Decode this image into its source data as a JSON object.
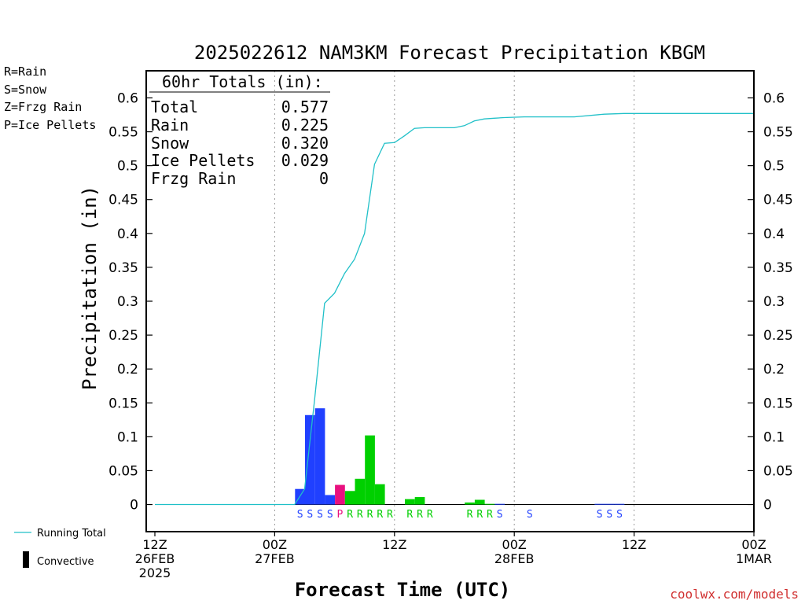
{
  "title": "2025022612 NAM3KM Forecast Precipitation KBGM",
  "legend_types": [
    {
      "text": "R=Rain",
      "color": "#00d000"
    },
    {
      "text": "S=Snow",
      "color": "#3050ff"
    },
    {
      "text": "Z=Frzg Rain",
      "color": "#ff8c40"
    },
    {
      "text": "P=Ice Pellets",
      "color": "#ff1f9f"
    }
  ],
  "totals_box": {
    "heading": "60hr Totals (in):",
    "rows": [
      {
        "label": "Total",
        "value": "0.577"
      },
      {
        "label": "Rain",
        "value": "0.225"
      },
      {
        "label": "Snow",
        "value": "0.320"
      },
      {
        "label": "Ice Pellets",
        "value": "0.029"
      },
      {
        "label": "Frzg Rain",
        "value": "0"
      }
    ]
  },
  "bottom_legend": {
    "running_total": "Running Total",
    "convective": "Convective"
  },
  "credit": "coolwx.com/models",
  "colors": {
    "rain": "#00d000",
    "snow": "#2040ff",
    "ice_pellets": "#e8107f",
    "running_total": "#20c0c8",
    "credit": "#d03030"
  },
  "chart_data": {
    "type": "bar",
    "ylabel": "Precipitation (in)",
    "xlabel": "Forecast Time (UTC)",
    "xlim": [
      0,
      60
    ],
    "ylim": [
      -0.04,
      0.64
    ],
    "y_ticks": [
      "0",
      "0.05",
      "0.1",
      "0.15",
      "0.2",
      "0.25",
      "0.3",
      "0.35",
      "0.4",
      "0.45",
      "0.5",
      "0.55",
      "0.6"
    ],
    "y_tick_values": [
      0,
      0.05,
      0.1,
      0.15,
      0.2,
      0.25,
      0.3,
      0.35,
      0.4,
      0.45,
      0.5,
      0.55,
      0.6
    ],
    "x_ticks": [
      {
        "h": 0,
        "lines": [
          "12Z",
          "26FEB",
          "2025"
        ]
      },
      {
        "h": 12,
        "lines": [
          "00Z",
          "27FEB"
        ]
      },
      {
        "h": 24,
        "lines": [
          "12Z"
        ]
      },
      {
        "h": 36,
        "lines": [
          "00Z",
          "28FEB"
        ]
      },
      {
        "h": 48,
        "lines": [
          "12Z"
        ]
      },
      {
        "h": 60,
        "lines": [
          "00Z",
          "1MAR"
        ]
      }
    ],
    "grid": "vertical dotted at 00Z/12Z",
    "bars": [
      {
        "h": 15,
        "value": 0.023,
        "type": "snow",
        "code": "S"
      },
      {
        "h": 16,
        "value": 0.132,
        "type": "snow",
        "code": "S"
      },
      {
        "h": 17,
        "value": 0.142,
        "type": "snow",
        "code": "S"
      },
      {
        "h": 18,
        "value": 0.014,
        "type": "snow",
        "code": "S"
      },
      {
        "h": 19,
        "value": 0.029,
        "type": "ice_pellets",
        "code": "P"
      },
      {
        "h": 20,
        "value": 0.02,
        "type": "rain",
        "code": "R"
      },
      {
        "h": 21,
        "value": 0.038,
        "type": "rain",
        "code": "R"
      },
      {
        "h": 22,
        "value": 0.102,
        "type": "rain",
        "code": "R"
      },
      {
        "h": 23,
        "value": 0.03,
        "type": "rain",
        "code": "R"
      },
      {
        "h": 24,
        "value": 0.0,
        "type": "rain",
        "code": "R"
      },
      {
        "h": 26,
        "value": 0.008,
        "type": "rain",
        "code": "R"
      },
      {
        "h": 27,
        "value": 0.011,
        "type": "rain",
        "code": "R"
      },
      {
        "h": 28,
        "value": 0.0,
        "type": "rain",
        "code": "R"
      },
      {
        "h": 32,
        "value": 0.003,
        "type": "rain",
        "code": "R"
      },
      {
        "h": 33,
        "value": 0.007,
        "type": "rain",
        "code": "R"
      },
      {
        "h": 34,
        "value": 0.001,
        "type": "rain",
        "code": "R"
      },
      {
        "h": 35,
        "value": 0.001,
        "type": "snow",
        "code": "S"
      },
      {
        "h": 38,
        "value": 0.0,
        "type": "snow",
        "code": "S"
      },
      {
        "h": 45,
        "value": 0.001,
        "type": "snow",
        "code": "S"
      },
      {
        "h": 46,
        "value": 0.001,
        "type": "snow",
        "code": "S"
      },
      {
        "h": 47,
        "value": 0.001,
        "type": "snow",
        "code": "S"
      }
    ],
    "running_total": [
      [
        0,
        0
      ],
      [
        14,
        0
      ],
      [
        15,
        0.023
      ],
      [
        16,
        0.155
      ],
      [
        17,
        0.297
      ],
      [
        18,
        0.312
      ],
      [
        19,
        0.341
      ],
      [
        20,
        0.362
      ],
      [
        21,
        0.4
      ],
      [
        22,
        0.502
      ],
      [
        23,
        0.533
      ],
      [
        24,
        0.534
      ],
      [
        25,
        0.544
      ],
      [
        26,
        0.555
      ],
      [
        27,
        0.556
      ],
      [
        30,
        0.556
      ],
      [
        31,
        0.559
      ],
      [
        32,
        0.566
      ],
      [
        33,
        0.569
      ],
      [
        34,
        0.57
      ],
      [
        35,
        0.571
      ],
      [
        37,
        0.572
      ],
      [
        42,
        0.572
      ],
      [
        45,
        0.576
      ],
      [
        47,
        0.577
      ],
      [
        60,
        0.577
      ]
    ]
  }
}
